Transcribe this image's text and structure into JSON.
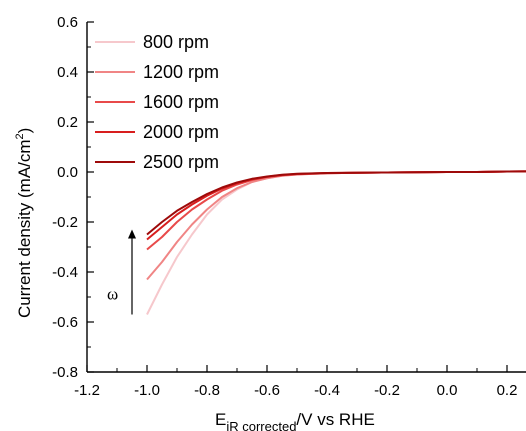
{
  "chart_data": {
    "type": "line",
    "xlabel": {
      "main": "E",
      "sub": "iR corrected",
      "rest": "/V vs RHE"
    },
    "ylabel": {
      "main": "Current density  (mA/cm",
      "sup": "2",
      "close": ")"
    },
    "xlim": [
      -1.2,
      0.3
    ],
    "ylim": [
      -0.8,
      0.6
    ],
    "x_ticks": [
      -1.2,
      -1.0,
      -0.8,
      -0.6,
      -0.4,
      -0.2,
      0.0,
      0.2
    ],
    "x_tick_labels": [
      "-1.2",
      "-1.0",
      "-0.8",
      "-0.6",
      "-0.4",
      "-0.2",
      "0.0",
      "0.2"
    ],
    "y_ticks": [
      -0.8,
      -0.6,
      -0.4,
      -0.2,
      0.0,
      0.2,
      0.4,
      0.6
    ],
    "y_tick_labels": [
      "-0.8",
      "-0.6",
      "-0.4",
      "-0.2",
      "0.0",
      "0.2",
      "0.4",
      "0.6"
    ],
    "legend_position": "top-left",
    "annotation": {
      "label": "ω",
      "arrow_from": [
        -1.05,
        -0.57
      ],
      "arrow_to": [
        -1.05,
        -0.23
      ]
    },
    "series": [
      {
        "name": "800 rpm",
        "color": "#f6c8cc",
        "x": [
          -1.0,
          -0.95,
          -0.9,
          -0.85,
          -0.8,
          -0.75,
          -0.7,
          -0.65,
          -0.6,
          -0.55,
          -0.5,
          -0.4,
          -0.3,
          -0.2,
          -0.1,
          0.0,
          0.1,
          0.2,
          0.3
        ],
        "y": [
          -0.57,
          -0.45,
          -0.34,
          -0.25,
          -0.17,
          -0.11,
          -0.07,
          -0.04,
          -0.025,
          -0.015,
          -0.01,
          -0.005,
          -0.003,
          -0.002,
          -0.001,
          0.0,
          0.0,
          0.002,
          0.003
        ]
      },
      {
        "name": "1200 rpm",
        "color": "#f08585",
        "x": [
          -1.0,
          -0.95,
          -0.9,
          -0.85,
          -0.8,
          -0.75,
          -0.7,
          -0.65,
          -0.6,
          -0.55,
          -0.5,
          -0.4,
          -0.3,
          -0.2,
          -0.1,
          0.0,
          0.1,
          0.2,
          0.3
        ],
        "y": [
          -0.43,
          -0.36,
          -0.28,
          -0.21,
          -0.15,
          -0.1,
          -0.065,
          -0.04,
          -0.025,
          -0.015,
          -0.01,
          -0.005,
          -0.003,
          -0.002,
          -0.001,
          0.0,
          0.0,
          0.002,
          0.003
        ]
      },
      {
        "name": "1600 rpm",
        "color": "#e84a4a",
        "x": [
          -1.0,
          -0.95,
          -0.9,
          -0.85,
          -0.8,
          -0.75,
          -0.7,
          -0.65,
          -0.6,
          -0.55,
          -0.5,
          -0.4,
          -0.3,
          -0.2,
          -0.1,
          0.0,
          0.1,
          0.2,
          0.3
        ],
        "y": [
          -0.31,
          -0.26,
          -0.2,
          -0.15,
          -0.11,
          -0.075,
          -0.05,
          -0.032,
          -0.02,
          -0.013,
          -0.009,
          -0.005,
          -0.003,
          -0.002,
          -0.001,
          0.0,
          0.0,
          0.002,
          0.003
        ]
      },
      {
        "name": "2000 rpm",
        "color": "#d81e1e",
        "x": [
          -1.0,
          -0.95,
          -0.9,
          -0.85,
          -0.8,
          -0.75,
          -0.7,
          -0.65,
          -0.6,
          -0.55,
          -0.5,
          -0.4,
          -0.3,
          -0.2,
          -0.1,
          0.0,
          0.1,
          0.2,
          0.3
        ],
        "y": [
          -0.27,
          -0.22,
          -0.17,
          -0.13,
          -0.095,
          -0.066,
          -0.045,
          -0.029,
          -0.019,
          -0.012,
          -0.008,
          -0.004,
          -0.003,
          -0.002,
          -0.001,
          0.0,
          0.0,
          0.002,
          0.003
        ]
      },
      {
        "name": "2500 rpm",
        "color": "#9e0a0a",
        "x": [
          -1.0,
          -0.95,
          -0.9,
          -0.85,
          -0.8,
          -0.75,
          -0.7,
          -0.65,
          -0.6,
          -0.55,
          -0.5,
          -0.4,
          -0.3,
          -0.2,
          -0.1,
          0.0,
          0.1,
          0.2,
          0.3
        ],
        "y": [
          -0.25,
          -0.2,
          -0.155,
          -0.12,
          -0.088,
          -0.062,
          -0.042,
          -0.027,
          -0.018,
          -0.011,
          -0.007,
          -0.004,
          -0.003,
          -0.002,
          -0.001,
          0.0,
          0.0,
          0.002,
          0.003
        ]
      }
    ]
  }
}
